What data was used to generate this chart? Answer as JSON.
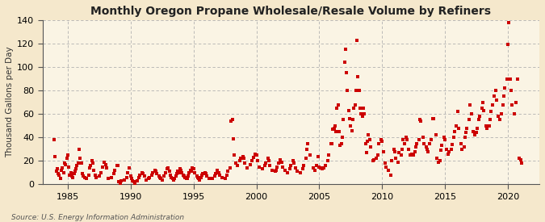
{
  "title": "Monthly Oregon Propane Wholesale/Resale Volume by Refiners",
  "ylabel": "Thousand Gallons per Day",
  "source": "Source: U.S. Energy Information Administration",
  "background_color": "#f5e8cc",
  "plot_bg_color": "#faf4e4",
  "marker_color": "#cc0000",
  "marker_size": 5,
  "xlim": [
    1983.0,
    2022.5
  ],
  "ylim": [
    0,
    140
  ],
  "yticks": [
    0,
    20,
    40,
    60,
    80,
    100,
    120,
    140
  ],
  "xticks": [
    1985,
    1990,
    1995,
    2000,
    2005,
    2010,
    2015,
    2020
  ],
  "data": [
    [
      1983.917,
      38
    ],
    [
      1984.0,
      24
    ],
    [
      1984.083,
      11
    ],
    [
      1984.167,
      13
    ],
    [
      1984.25,
      9
    ],
    [
      1984.333,
      8
    ],
    [
      1984.417,
      5
    ],
    [
      1984.5,
      12
    ],
    [
      1984.583,
      14
    ],
    [
      1984.667,
      10
    ],
    [
      1984.75,
      18
    ],
    [
      1984.833,
      17
    ],
    [
      1984.917,
      22
    ],
    [
      1985.0,
      25
    ],
    [
      1985.083,
      15
    ],
    [
      1985.167,
      8
    ],
    [
      1985.25,
      10
    ],
    [
      1985.333,
      7
    ],
    [
      1985.417,
      6
    ],
    [
      1985.5,
      9
    ],
    [
      1985.583,
      11
    ],
    [
      1985.667,
      13
    ],
    [
      1985.75,
      16
    ],
    [
      1985.833,
      18
    ],
    [
      1985.917,
      30
    ],
    [
      1986.0,
      22
    ],
    [
      1986.083,
      18
    ],
    [
      1986.167,
      9
    ],
    [
      1986.25,
      7
    ],
    [
      1986.333,
      6
    ],
    [
      1986.5,
      5
    ],
    [
      1986.667,
      8
    ],
    [
      1986.75,
      14
    ],
    [
      1986.833,
      16
    ],
    [
      1986.917,
      20
    ],
    [
      1987.0,
      18
    ],
    [
      1987.083,
      12
    ],
    [
      1987.167,
      8
    ],
    [
      1987.25,
      6
    ],
    [
      1987.5,
      7
    ],
    [
      1987.667,
      10
    ],
    [
      1987.75,
      15
    ],
    [
      1987.917,
      19
    ],
    [
      1988.0,
      17
    ],
    [
      1988.083,
      14
    ],
    [
      1988.25,
      5
    ],
    [
      1988.5,
      6
    ],
    [
      1988.667,
      9
    ],
    [
      1988.75,
      12
    ],
    [
      1988.917,
      16
    ],
    [
      1989.0,
      16
    ],
    [
      1989.083,
      2
    ],
    [
      1989.167,
      1
    ],
    [
      1989.25,
      3
    ],
    [
      1989.5,
      4
    ],
    [
      1989.667,
      6
    ],
    [
      1989.75,
      10
    ],
    [
      1989.917,
      14
    ],
    [
      1990.0,
      7
    ],
    [
      1990.083,
      5
    ],
    [
      1990.167,
      3
    ],
    [
      1990.25,
      2
    ],
    [
      1990.333,
      1
    ],
    [
      1990.5,
      3
    ],
    [
      1990.667,
      6
    ],
    [
      1990.75,
      8
    ],
    [
      1990.917,
      10
    ],
    [
      1991.0,
      9
    ],
    [
      1991.083,
      7
    ],
    [
      1991.25,
      4
    ],
    [
      1991.417,
      5
    ],
    [
      1991.5,
      6
    ],
    [
      1991.667,
      8
    ],
    [
      1991.75,
      10
    ],
    [
      1991.917,
      12
    ],
    [
      1992.0,
      11
    ],
    [
      1992.083,
      9
    ],
    [
      1992.25,
      7
    ],
    [
      1992.333,
      6
    ],
    [
      1992.417,
      5
    ],
    [
      1992.5,
      4
    ],
    [
      1992.667,
      7
    ],
    [
      1992.75,
      10
    ],
    [
      1992.917,
      13
    ],
    [
      1993.0,
      14
    ],
    [
      1993.083,
      11
    ],
    [
      1993.167,
      8
    ],
    [
      1993.25,
      6
    ],
    [
      1993.333,
      5
    ],
    [
      1993.417,
      4
    ],
    [
      1993.5,
      5
    ],
    [
      1993.583,
      7
    ],
    [
      1993.667,
      9
    ],
    [
      1993.75,
      11
    ],
    [
      1993.833,
      10
    ],
    [
      1993.917,
      13
    ],
    [
      1994.0,
      12
    ],
    [
      1994.083,
      10
    ],
    [
      1994.167,
      8
    ],
    [
      1994.25,
      7
    ],
    [
      1994.333,
      6
    ],
    [
      1994.417,
      5
    ],
    [
      1994.5,
      5
    ],
    [
      1994.583,
      7
    ],
    [
      1994.667,
      10
    ],
    [
      1994.75,
      12
    ],
    [
      1994.833,
      11
    ],
    [
      1994.917,
      14
    ],
    [
      1995.0,
      13
    ],
    [
      1995.083,
      10
    ],
    [
      1995.25,
      7
    ],
    [
      1995.333,
      6
    ],
    [
      1995.417,
      5
    ],
    [
      1995.5,
      4
    ],
    [
      1995.583,
      6
    ],
    [
      1995.667,
      8
    ],
    [
      1995.75,
      9
    ],
    [
      1995.917,
      10
    ],
    [
      1996.0,
      9
    ],
    [
      1996.083,
      7
    ],
    [
      1996.25,
      5
    ],
    [
      1996.5,
      5
    ],
    [
      1996.667,
      7
    ],
    [
      1996.75,
      9
    ],
    [
      1996.917,
      12
    ],
    [
      1997.0,
      10
    ],
    [
      1997.083,
      8
    ],
    [
      1997.25,
      6
    ],
    [
      1997.5,
      5
    ],
    [
      1997.667,
      8
    ],
    [
      1997.75,
      11
    ],
    [
      1997.917,
      14
    ],
    [
      1998.0,
      54
    ],
    [
      1998.083,
      55
    ],
    [
      1998.167,
      39
    ],
    [
      1998.25,
      25
    ],
    [
      1998.333,
      18
    ],
    [
      1998.5,
      16
    ],
    [
      1998.667,
      20
    ],
    [
      1998.75,
      22
    ],
    [
      1998.917,
      24
    ],
    [
      1999.0,
      22
    ],
    [
      1999.083,
      18
    ],
    [
      1999.25,
      14
    ],
    [
      1999.5,
      17
    ],
    [
      1999.667,
      20
    ],
    [
      1999.75,
      23
    ],
    [
      1999.917,
      26
    ],
    [
      2000.0,
      25
    ],
    [
      2000.083,
      20
    ],
    [
      2000.25,
      15
    ],
    [
      2000.5,
      13
    ],
    [
      2000.667,
      16
    ],
    [
      2000.75,
      18
    ],
    [
      2000.917,
      22
    ],
    [
      2001.0,
      20
    ],
    [
      2001.083,
      16
    ],
    [
      2001.25,
      12
    ],
    [
      2001.5,
      11
    ],
    [
      2001.583,
      12
    ],
    [
      2001.667,
      15
    ],
    [
      2001.75,
      18
    ],
    [
      2001.917,
      21
    ],
    [
      2002.0,
      19
    ],
    [
      2002.083,
      15
    ],
    [
      2002.25,
      12
    ],
    [
      2002.5,
      10
    ],
    [
      2002.667,
      13
    ],
    [
      2002.75,
      16
    ],
    [
      2002.917,
      20
    ],
    [
      2003.0,
      18
    ],
    [
      2003.083,
      14
    ],
    [
      2003.25,
      11
    ],
    [
      2003.5,
      10
    ],
    [
      2003.667,
      13
    ],
    [
      2003.75,
      16
    ],
    [
      2003.917,
      22
    ],
    [
      2004.0,
      30
    ],
    [
      2004.083,
      35
    ],
    [
      2004.25,
      25
    ],
    [
      2004.5,
      14
    ],
    [
      2004.667,
      12
    ],
    [
      2004.75,
      16
    ],
    [
      2004.917,
      24
    ],
    [
      2005.0,
      15
    ],
    [
      2005.083,
      14
    ],
    [
      2005.25,
      13
    ],
    [
      2005.333,
      14
    ],
    [
      2005.5,
      16
    ],
    [
      2005.667,
      20
    ],
    [
      2005.75,
      25
    ],
    [
      2005.917,
      35
    ],
    [
      2006.0,
      35
    ],
    [
      2006.083,
      47
    ],
    [
      2006.167,
      48
    ],
    [
      2006.25,
      50
    ],
    [
      2006.333,
      45
    ],
    [
      2006.417,
      65
    ],
    [
      2006.5,
      68
    ],
    [
      2006.583,
      45
    ],
    [
      2006.667,
      33
    ],
    [
      2006.75,
      35
    ],
    [
      2006.833,
      40
    ],
    [
      2006.917,
      55
    ],
    [
      2007.0,
      104
    ],
    [
      2007.083,
      115
    ],
    [
      2007.167,
      95
    ],
    [
      2007.25,
      80
    ],
    [
      2007.333,
      63
    ],
    [
      2007.417,
      56
    ],
    [
      2007.5,
      50
    ],
    [
      2007.583,
      46
    ],
    [
      2007.667,
      55
    ],
    [
      2007.75,
      65
    ],
    [
      2007.833,
      68
    ],
    [
      2007.917,
      80
    ],
    [
      2008.0,
      123
    ],
    [
      2008.083,
      92
    ],
    [
      2008.167,
      80
    ],
    [
      2008.25,
      65
    ],
    [
      2008.333,
      60
    ],
    [
      2008.417,
      58
    ],
    [
      2008.5,
      65
    ],
    [
      2008.583,
      60
    ],
    [
      2008.667,
      35
    ],
    [
      2008.75,
      27
    ],
    [
      2008.833,
      37
    ],
    [
      2008.917,
      42
    ],
    [
      2009.0,
      38
    ],
    [
      2009.083,
      32
    ],
    [
      2009.25,
      20
    ],
    [
      2009.333,
      21
    ],
    [
      2009.5,
      22
    ],
    [
      2009.667,
      25
    ],
    [
      2009.75,
      35
    ],
    [
      2009.917,
      38
    ],
    [
      2010.0,
      37
    ],
    [
      2010.083,
      28
    ],
    [
      2010.25,
      18
    ],
    [
      2010.333,
      15
    ],
    [
      2010.5,
      12
    ],
    [
      2010.667,
      8
    ],
    [
      2010.75,
      20
    ],
    [
      2010.917,
      30
    ],
    [
      2011.0,
      28
    ],
    [
      2011.083,
      22
    ],
    [
      2011.25,
      19
    ],
    [
      2011.333,
      27
    ],
    [
      2011.5,
      25
    ],
    [
      2011.583,
      30
    ],
    [
      2011.667,
      38
    ],
    [
      2011.75,
      35
    ],
    [
      2011.917,
      40
    ],
    [
      2012.0,
      38
    ],
    [
      2012.083,
      30
    ],
    [
      2012.25,
      25
    ],
    [
      2012.333,
      26
    ],
    [
      2012.5,
      25
    ],
    [
      2012.583,
      28
    ],
    [
      2012.667,
      32
    ],
    [
      2012.75,
      35
    ],
    [
      2012.917,
      38
    ],
    [
      2013.0,
      55
    ],
    [
      2013.083,
      54
    ],
    [
      2013.25,
      40
    ],
    [
      2013.333,
      35
    ],
    [
      2013.5,
      32
    ],
    [
      2013.583,
      30
    ],
    [
      2013.667,
      28
    ],
    [
      2013.75,
      35
    ],
    [
      2013.917,
      38
    ],
    [
      2014.0,
      56
    ],
    [
      2014.083,
      56
    ],
    [
      2014.25,
      42
    ],
    [
      2014.333,
      22
    ],
    [
      2014.5,
      19
    ],
    [
      2014.583,
      20
    ],
    [
      2014.667,
      29
    ],
    [
      2014.75,
      33
    ],
    [
      2014.917,
      40
    ],
    [
      2015.0,
      38
    ],
    [
      2015.083,
      30
    ],
    [
      2015.25,
      26
    ],
    [
      2015.333,
      28
    ],
    [
      2015.5,
      30
    ],
    [
      2015.583,
      34
    ],
    [
      2015.667,
      40
    ],
    [
      2015.75,
      45
    ],
    [
      2015.917,
      50
    ],
    [
      2016.0,
      62
    ],
    [
      2016.083,
      48
    ],
    [
      2016.25,
      35
    ],
    [
      2016.333,
      30
    ],
    [
      2016.5,
      32
    ],
    [
      2016.583,
      40
    ],
    [
      2016.667,
      44
    ],
    [
      2016.75,
      48
    ],
    [
      2016.917,
      55
    ],
    [
      2017.0,
      68
    ],
    [
      2017.083,
      60
    ],
    [
      2017.25,
      45
    ],
    [
      2017.333,
      42
    ],
    [
      2017.5,
      44
    ],
    [
      2017.583,
      48
    ],
    [
      2017.667,
      55
    ],
    [
      2017.75,
      58
    ],
    [
      2017.917,
      65
    ],
    [
      2018.0,
      70
    ],
    [
      2018.083,
      63
    ],
    [
      2018.25,
      50
    ],
    [
      2018.333,
      48
    ],
    [
      2018.5,
      50
    ],
    [
      2018.583,
      55
    ],
    [
      2018.667,
      62
    ],
    [
      2018.75,
      68
    ],
    [
      2018.917,
      75
    ],
    [
      2019.0,
      80
    ],
    [
      2019.083,
      72
    ],
    [
      2019.25,
      58
    ],
    [
      2019.333,
      55
    ],
    [
      2019.5,
      60
    ],
    [
      2019.583,
      68
    ],
    [
      2019.667,
      75
    ],
    [
      2019.75,
      82
    ],
    [
      2019.917,
      90
    ],
    [
      2020.0,
      119
    ],
    [
      2020.083,
      138
    ],
    [
      2020.167,
      90
    ],
    [
      2020.25,
      80
    ],
    [
      2020.333,
      68
    ],
    [
      2020.5,
      60
    ],
    [
      2020.667,
      70
    ],
    [
      2020.75,
      90
    ],
    [
      2020.917,
      22
    ],
    [
      2021.0,
      21
    ],
    [
      2021.083,
      18
    ]
  ]
}
